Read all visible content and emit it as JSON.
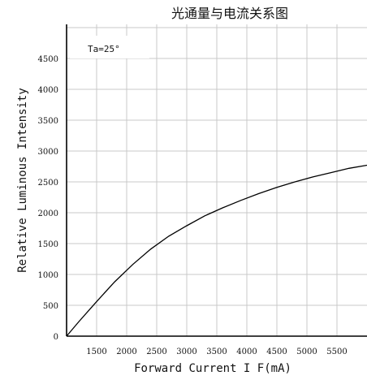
{
  "chart_data": {
    "type": "line",
    "title": "光通量与电流关系图",
    "xlabel": "Forward Current I F(mA)",
    "ylabel": "Relative Luminous Intensity",
    "annotation": "Ta=25°",
    "xlim": [
      1000,
      6000
    ],
    "ylim": [
      0,
      5000
    ],
    "x_ticks": [
      1500,
      2000,
      2500,
      3000,
      3500,
      4000,
      4500,
      5000,
      5500
    ],
    "y_ticks": [
      0,
      500,
      1000,
      1500,
      2000,
      2500,
      3000,
      3500,
      4000,
      4500
    ],
    "grid": true,
    "series": [
      {
        "x": [
          1000,
          1200,
          1500,
          1800,
          2100,
          2400,
          2700,
          3000,
          3300,
          3600,
          3900,
          4200,
          4500,
          4800,
          5100,
          5400,
          5700,
          6000
        ],
        "y": [
          0,
          230,
          560,
          880,
          1160,
          1410,
          1620,
          1790,
          1950,
          2080,
          2200,
          2310,
          2410,
          2500,
          2580,
          2650,
          2720,
          2770
        ]
      }
    ]
  }
}
